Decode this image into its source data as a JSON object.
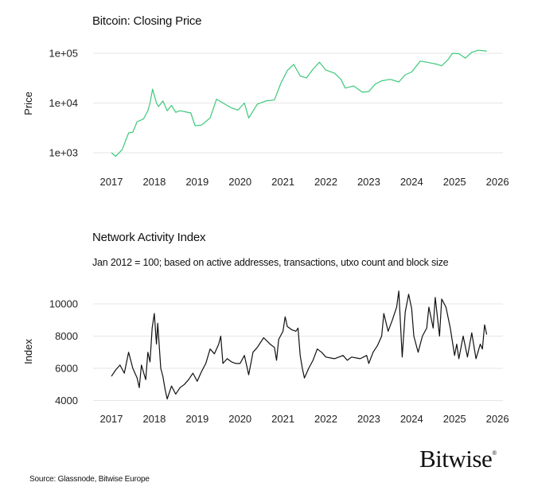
{
  "chart_data": [
    {
      "type": "line",
      "title": "Bitcoin: Closing Price",
      "xlabel": "",
      "ylabel": "Price",
      "yscale": "log",
      "ylim": [
        700,
        130000
      ],
      "xlim": [
        2017,
        2026
      ],
      "grid": true,
      "line_color": "#3cc97a",
      "yticks": [
        "1e+03",
        "1e+04",
        "1e+05"
      ],
      "ytick_values": [
        1000,
        10000,
        100000
      ],
      "xticks": [
        "2017",
        "2018",
        "2019",
        "2020",
        "2021",
        "2022",
        "2023",
        "2024",
        "2025",
        "2026"
      ],
      "x": [
        2017.0,
        2017.1,
        2017.25,
        2017.4,
        2017.5,
        2017.6,
        2017.75,
        2017.85,
        2017.9,
        2017.96,
        2018.05,
        2018.1,
        2018.2,
        2018.3,
        2018.4,
        2018.5,
        2018.6,
        2018.85,
        2018.95,
        2019.1,
        2019.3,
        2019.45,
        2019.6,
        2019.8,
        2019.95,
        2020.1,
        2020.2,
        2020.4,
        2020.6,
        2020.8,
        2020.95,
        2021.1,
        2021.25,
        2021.4,
        2021.55,
        2021.7,
        2021.85,
        2022.0,
        2022.2,
        2022.35,
        2022.45,
        2022.65,
        2022.85,
        2023.0,
        2023.15,
        2023.3,
        2023.5,
        2023.7,
        2023.85,
        2024.0,
        2024.2,
        2024.4,
        2024.6,
        2024.7,
        2024.85,
        2024.95,
        2025.1,
        2025.25,
        2025.4,
        2025.55,
        2025.7,
        2025.75
      ],
      "values": [
        1000,
        850,
        1150,
        2500,
        2600,
        4200,
        4800,
        7000,
        10000,
        19000,
        10000,
        8500,
        11000,
        7000,
        9000,
        6500,
        7000,
        6300,
        3500,
        3600,
        5000,
        12000,
        10000,
        8000,
        7200,
        10000,
        5000,
        9500,
        11000,
        11500,
        25000,
        45000,
        60000,
        35000,
        32000,
        48000,
        66000,
        46000,
        40000,
        30000,
        20000,
        22000,
        16500,
        17000,
        24000,
        28000,
        30000,
        26500,
        37000,
        42000,
        70000,
        65000,
        60000,
        56000,
        75000,
        100000,
        98000,
        80000,
        105000,
        115000,
        112000,
        110000
      ]
    },
    {
      "type": "line",
      "title": "Network Activity Index",
      "subtitle": "Jan 2012 = 100; based on active addresses, transactions, utxo count and block size",
      "xlabel": "",
      "ylabel": "Index",
      "ylim": [
        3600,
        11100
      ],
      "xlim": [
        2017,
        2026
      ],
      "grid": true,
      "line_color": "#111111",
      "yticks": [
        "4000",
        "6000",
        "8000",
        "10000"
      ],
      "ytick_values": [
        4000,
        6000,
        8000,
        10000
      ],
      "xticks": [
        "2017",
        "2018",
        "2019",
        "2020",
        "2021",
        "2022",
        "2023",
        "2024",
        "2025",
        "2026"
      ],
      "x": [
        2017.0,
        2017.1,
        2017.2,
        2017.3,
        2017.4,
        2017.5,
        2017.6,
        2017.65,
        2017.7,
        2017.8,
        2017.85,
        2017.9,
        2017.95,
        2018.0,
        2018.05,
        2018.08,
        2018.15,
        2018.2,
        2018.25,
        2018.3,
        2018.4,
        2018.5,
        2018.6,
        2018.7,
        2018.8,
        2018.9,
        2019.0,
        2019.1,
        2019.2,
        2019.3,
        2019.4,
        2019.5,
        2019.55,
        2019.6,
        2019.7,
        2019.8,
        2019.9,
        2020.0,
        2020.1,
        2020.2,
        2020.3,
        2020.4,
        2020.55,
        2020.7,
        2020.8,
        2020.85,
        2020.9,
        2021.0,
        2021.05,
        2021.1,
        2021.2,
        2021.3,
        2021.35,
        2021.4,
        2021.45,
        2021.5,
        2021.6,
        2021.7,
        2021.8,
        2021.9,
        2022.0,
        2022.2,
        2022.4,
        2022.5,
        2022.6,
        2022.8,
        2022.95,
        2023.0,
        2023.1,
        2023.2,
        2023.3,
        2023.35,
        2023.45,
        2023.55,
        2023.65,
        2023.7,
        2023.78,
        2023.85,
        2023.93,
        2024.0,
        2024.05,
        2024.15,
        2024.25,
        2024.35,
        2024.4,
        2024.5,
        2024.55,
        2024.65,
        2024.7,
        2024.8,
        2024.9,
        2025.0,
        2025.05,
        2025.1,
        2025.2,
        2025.3,
        2025.4,
        2025.5,
        2025.6,
        2025.65,
        2025.7,
        2025.75
      ],
      "values": [
        5500,
        5900,
        6200,
        5700,
        7000,
        6000,
        5400,
        4800,
        6200,
        5300,
        7000,
        6400,
        8500,
        9400,
        7500,
        8800,
        6000,
        5500,
        4700,
        4100,
        4900,
        4400,
        4800,
        5000,
        5300,
        5700,
        5200,
        5800,
        6300,
        7200,
        6900,
        7500,
        8000,
        6300,
        6600,
        6400,
        6300,
        6300,
        6800,
        5600,
        7000,
        7300,
        7900,
        7500,
        7300,
        6500,
        7800,
        8300,
        9200,
        8600,
        8400,
        8300,
        8500,
        6800,
        6000,
        5400,
        6000,
        6500,
        7200,
        7000,
        6700,
        6600,
        6800,
        6500,
        6700,
        6600,
        6800,
        6300,
        7000,
        7400,
        8000,
        9400,
        8300,
        9000,
        9800,
        10800,
        6700,
        9500,
        10600,
        9700,
        8000,
        7000,
        8000,
        8500,
        9800,
        8500,
        10400,
        8000,
        10300,
        9800,
        8500,
        6800,
        7500,
        6600,
        8000,
        6700,
        8200,
        6600,
        7500,
        7200,
        8700,
        8100
      ]
    }
  ],
  "footer": {
    "source": "Source: Glassnode, Bitwise Europe",
    "logo": "Bitwise",
    "logo_mark": "®"
  }
}
